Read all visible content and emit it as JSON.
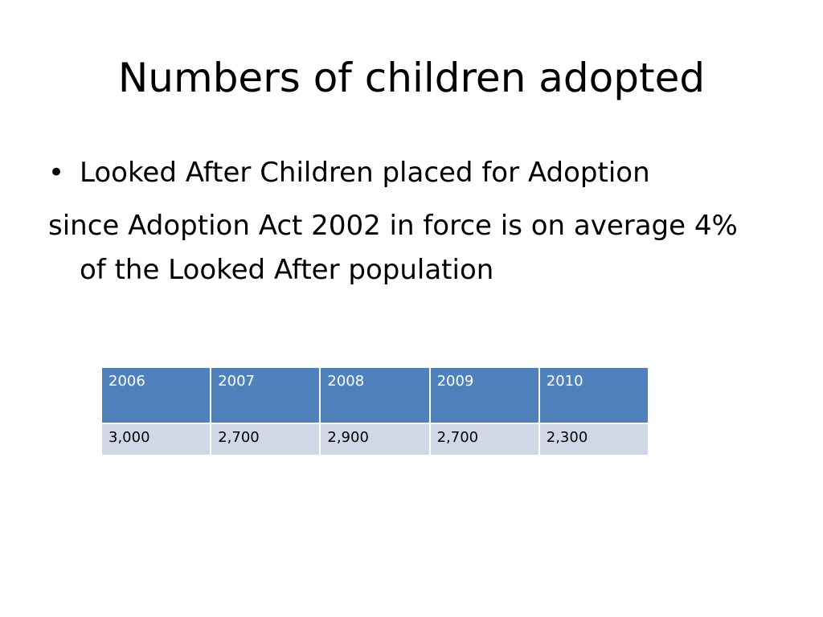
{
  "slide": {
    "title": "Numbers of children adopted",
    "bullet": "•",
    "bullet_text": "Looked After Children placed for Adoption",
    "paragraph": "since Adoption Act 2002 in force is on average 4% of the Looked After population"
  },
  "table": {
    "headers": [
      "2006",
      "2007",
      "2008",
      "2009",
      "2010"
    ],
    "rows": [
      [
        "3,000",
        "2,700",
        "2,900",
        "2,700",
        "2,300"
      ]
    ],
    "colors": {
      "header_bg": "#4f81bd",
      "header_text": "#ffffff",
      "row_bg": "#d0d8e8"
    }
  }
}
